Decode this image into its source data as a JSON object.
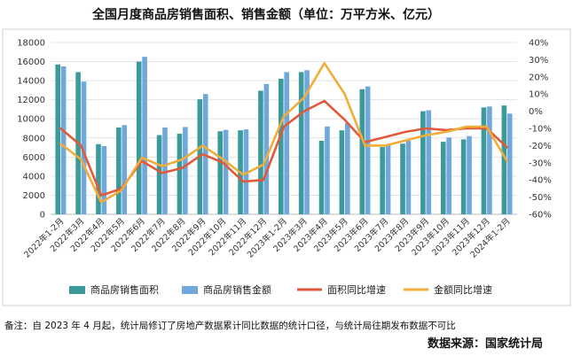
{
  "chart_data": {
    "type": "bar",
    "title": "全国月度商品房销售面积、销售金额（单位：万平方米、亿元）",
    "categories": [
      "2022年1-2月",
      "2022年3月",
      "2022年4月",
      "2022年5月",
      "2022年6月",
      "2022年7月",
      "2022年8月",
      "2022年9月",
      "2022年10月",
      "2022年11月",
      "2022年12月",
      "2023年1-2月",
      "2023年3月",
      "2023年4月",
      "2023年5月",
      "2023年6月",
      "2023年7月",
      "2023年8月",
      "2023年9月",
      "2023年10月",
      "2023年11月",
      "2023年12月",
      "2024年1-2月"
    ],
    "left_axis": {
      "ylim": [
        0,
        18000
      ],
      "ticks": [
        "0",
        "2000",
        "4000",
        "6000",
        "8000",
        "10000",
        "12000",
        "14000",
        "16000",
        "18000"
      ]
    },
    "right_axis": {
      "ylim": [
        -60,
        40
      ],
      "ticks": [
        "-60%",
        "-50%",
        "-40%",
        "-30%",
        "-20%",
        "-10%",
        "0%",
        "10%",
        "20%",
        "30%",
        "40%"
      ]
    },
    "series": [
      {
        "name": "商品房销售面积",
        "type": "bar",
        "axis": "left",
        "color": "#3c9a9a",
        "values": [
          15700,
          14900,
          7350,
          9100,
          16000,
          8300,
          8450,
          12050,
          8700,
          8800,
          12950,
          14200,
          14900,
          7700,
          8800,
          13100,
          7050,
          7400,
          10800,
          7600,
          7850,
          11200,
          11400
        ]
      },
      {
        "name": "商品房销售金额",
        "type": "bar",
        "axis": "left",
        "color": "#6fa8dc",
        "values": [
          15500,
          13900,
          7150,
          9350,
          16500,
          9100,
          9150,
          12600,
          8850,
          8900,
          13650,
          14900,
          15100,
          9200,
          9550,
          13400,
          7250,
          7700,
          10900,
          8050,
          8200,
          11300,
          10550
        ]
      },
      {
        "name": "面积同比增速",
        "type": "line",
        "axis": "right",
        "color": "#e05a3a",
        "values": [
          -10,
          -20,
          -49,
          -45,
          -29,
          -36,
          -33,
          -25,
          -30,
          -41,
          -40,
          -9,
          0,
          6,
          -5,
          -18,
          -15,
          -12,
          -10,
          -11,
          -10,
          -10,
          -21
        ]
      },
      {
        "name": "金额同比增速",
        "type": "line",
        "axis": "right",
        "color": "#f0ad3a",
        "values": [
          -19,
          -28,
          -53,
          -46,
          -27,
          -32,
          -28,
          -20,
          -28,
          -37,
          -31,
          -3,
          8,
          28,
          10,
          -20,
          -20,
          -17,
          -14,
          -12,
          -9,
          -9,
          -29
        ]
      }
    ]
  },
  "footer": {
    "note": "备注：自 2023 年 4 月起，统计局修订了房地产数据累计同比数据的统计口径，与统计局往期发布数据不可比",
    "source": "数据来源：国家统计局"
  }
}
